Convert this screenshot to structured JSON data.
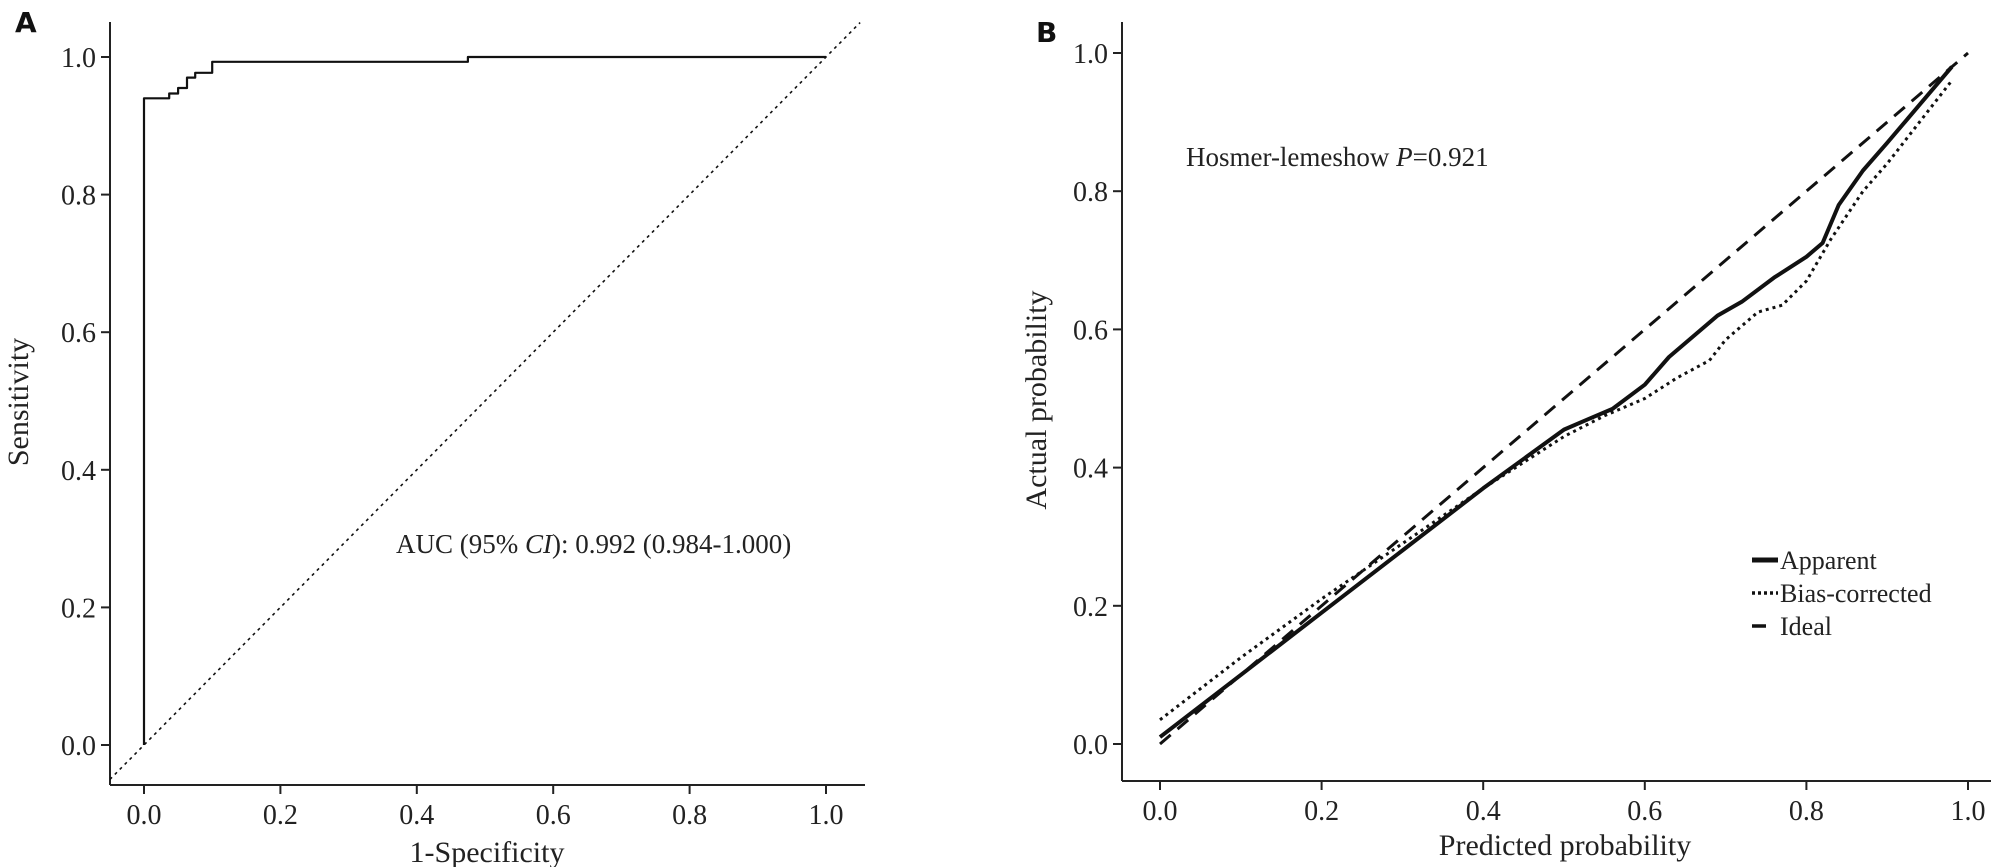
{
  "chart_data": [
    {
      "panel": "A",
      "type": "line",
      "xlabel": "1-Specificity",
      "ylabel": "Sensitivity",
      "xlim": [
        0,
        1
      ],
      "ylim": [
        0,
        1
      ],
      "xticks": [
        "0.0",
        "0.2",
        "0.4",
        "0.6",
        "0.8",
        "1.0"
      ],
      "yticks": [
        "0.0",
        "0.2",
        "0.4",
        "0.6",
        "0.8",
        "1.0"
      ],
      "annotation": {
        "prefix": "AUC (95% ",
        "italic": "CI",
        "suffix": "): 0.992 (0.984-1.000)"
      },
      "grid": false,
      "series": [
        {
          "style": "solid",
          "x": [
            0,
            0,
            0.037,
            0.037,
            0.05,
            0.05,
            0.063,
            0.063,
            0.075,
            0.075,
            0.1,
            0.1,
            0.148,
            0.148,
            0.475,
            0.475,
            1.0
          ],
          "y": [
            0,
            0.94,
            0.94,
            0.947,
            0.947,
            0.955,
            0.955,
            0.97,
            0.97,
            0.977,
            0.977,
            0.993,
            0.993,
            0.993,
            0.993,
            1.0,
            1.0
          ]
        },
        {
          "style": "dotted",
          "x": [
            -0.05,
            1.05
          ],
          "y": [
            -0.05,
            1.05
          ]
        }
      ]
    },
    {
      "panel": "B",
      "type": "line",
      "xlabel": "Predicted probability",
      "ylabel": "Actual probability",
      "xlim": [
        0,
        1
      ],
      "ylim": [
        0,
        1
      ],
      "xticks": [
        "0.0",
        "0.2",
        "0.4",
        "0.6",
        "0.8",
        "1.0"
      ],
      "yticks": [
        "0.0",
        "0.2",
        "0.4",
        "0.6",
        "0.8",
        "1.0"
      ],
      "annotation": {
        "prefix": "Hosmer-lemeshow ",
        "italic": "P",
        "suffix": "=0.921"
      },
      "legend_position": "bottom-right",
      "grid": false,
      "series": [
        {
          "name": "Apparent",
          "style": "solid",
          "x": [
            0.0,
            0.1,
            0.2,
            0.3,
            0.4,
            0.5,
            0.53,
            0.56,
            0.6,
            0.63,
            0.67,
            0.69,
            0.72,
            0.76,
            0.8,
            0.82,
            0.84,
            0.87,
            0.9,
            0.94,
            0.98
          ],
          "y": [
            0.01,
            0.1,
            0.19,
            0.28,
            0.37,
            0.455,
            0.47,
            0.485,
            0.52,
            0.56,
            0.6,
            0.62,
            0.64,
            0.675,
            0.705,
            0.725,
            0.78,
            0.83,
            0.87,
            0.925,
            0.98
          ]
        },
        {
          "name": "Bias-corrected",
          "style": "dotted",
          "x": [
            0.0,
            0.1,
            0.2,
            0.3,
            0.4,
            0.5,
            0.55,
            0.6,
            0.64,
            0.68,
            0.7,
            0.74,
            0.77,
            0.8,
            0.83,
            0.87,
            0.9,
            0.94,
            0.98
          ],
          "y": [
            0.035,
            0.125,
            0.21,
            0.29,
            0.37,
            0.445,
            0.475,
            0.5,
            0.53,
            0.555,
            0.585,
            0.625,
            0.635,
            0.67,
            0.73,
            0.8,
            0.84,
            0.9,
            0.96
          ]
        },
        {
          "name": "Ideal",
          "style": "dashed",
          "x": [
            0.0,
            1.0
          ],
          "y": [
            0.0,
            1.0
          ]
        }
      ]
    }
  ]
}
